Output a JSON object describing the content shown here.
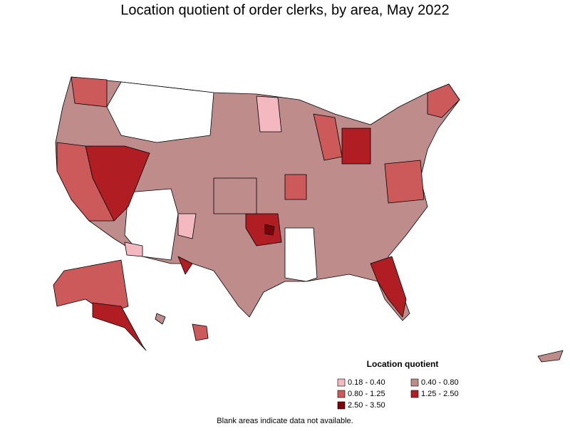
{
  "title": "Location quotient of order clerks, by area, May 2022",
  "legend": {
    "title": "Location quotient",
    "items": [
      {
        "label": "0.18 - 0.40",
        "color": "#f4b8c0"
      },
      {
        "label": "0.40 - 0.80",
        "color": "#bf8c8c"
      },
      {
        "label": "0.80 - 1.25",
        "color": "#cd5a5a"
      },
      {
        "label": "1.25 - 2.50",
        "color": "#b01e24"
      },
      {
        "label": "2.50 - 3.50",
        "color": "#7c0008"
      }
    ]
  },
  "note": "Blank areas indicate data not available."
}
